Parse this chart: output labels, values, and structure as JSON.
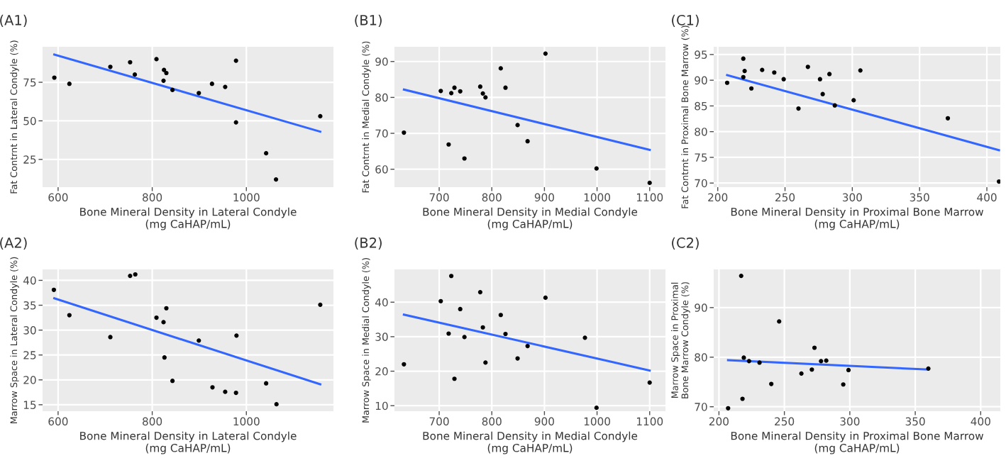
{
  "chart_data": [
    {
      "type": "scatter",
      "title": "(A1)",
      "xlabel": "Bone Mineral Density in Lateral Condyle\n(mg CaHAP/mL)",
      "ylabel": "Fat Contrnt in Lateral Condyle (%)",
      "xlim": [
        567,
        1185
      ],
      "ylim": [
        7,
        98
      ],
      "xticks": [
        600,
        800,
        1000
      ],
      "yticks": [
        25,
        50,
        75
      ],
      "grid": true,
      "series": [
        {
          "color": "#000000",
          "marker": "circle",
          "x": [
            592,
            624,
            711,
            753,
            763,
            809,
            825,
            830,
            824,
            843,
            899,
            927,
            955,
            978,
            978,
            1042,
            1063,
            1157
          ],
          "values": [
            78,
            74,
            85,
            88,
            80,
            90,
            83,
            81,
            76,
            70,
            68,
            74,
            72,
            89,
            49,
            29,
            12,
            53
          ]
        },
        {
          "type": "line",
          "color": "#3366ff",
          "x": [
            592,
            1157
          ],
          "values": [
            93,
            43
          ]
        }
      ]
    },
    {
      "type": "scatter",
      "title": "(B1)",
      "xlabel": "Bone Mineral Density in Medial Condyle\n(mg CaHAP/mL)",
      "ylabel": "Fat Contrnt in Medial Condyle (%)",
      "xlim": [
        615,
        1130
      ],
      "ylim": [
        55,
        94.1
      ],
      "xticks": [
        700,
        800,
        900,
        1000,
        1100
      ],
      "yticks": [
        60,
        70,
        80,
        90
      ],
      "grid": true,
      "series": [
        {
          "color": "#000000",
          "marker": "circle",
          "x": [
            633,
            703,
            718,
            723,
            729,
            740,
            748,
            778,
            783,
            788,
            817,
            826,
            849,
            868,
            902,
            999,
            1100
          ],
          "values": [
            70.2,
            81.8,
            66.9,
            81.2,
            82.7,
            81.7,
            63,
            83,
            81.1,
            80,
            88.1,
            82.7,
            72.3,
            67.8,
            92.2,
            60.2,
            56.2
          ]
        },
        {
          "type": "line",
          "color": "#3366ff",
          "x": [
            633,
            1100
          ],
          "values": [
            82.2,
            65.4
          ]
        }
      ]
    },
    {
      "type": "scatter",
      "title": "(C1)",
      "xlabel": "Bone Mineral Density in Proximal Bone Marrow\n(mg CaHAP/mL)",
      "ylabel": "Fat Contrnt in Proximal Bone Marrow (%)",
      "xlim": [
        197,
        410
      ],
      "ylim": [
        69.2,
        96.5
      ],
      "xticks": [
        200,
        250,
        300,
        350,
        400
      ],
      "yticks": [
        70,
        75,
        80,
        85,
        90,
        95
      ],
      "grid": true,
      "series": [
        {
          "color": "#000000",
          "marker": "circle",
          "x": [
            207,
            219,
            219,
            220,
            225,
            233,
            242,
            249,
            260,
            267,
            276,
            278,
            283,
            287,
            301,
            306,
            371,
            409
          ],
          "values": [
            89.5,
            94.2,
            90.6,
            91.8,
            88.4,
            92,
            91.5,
            90.2,
            84.5,
            92.6,
            90.2,
            87.3,
            91.2,
            85.1,
            86.1,
            91.9,
            82.6,
            70.3
          ]
        },
        {
          "type": "line",
          "color": "#3366ff",
          "x": [
            207,
            409
          ],
          "values": [
            91,
            76.4
          ]
        }
      ]
    },
    {
      "type": "scatter",
      "title": "(A2)",
      "xlabel": "Bone Mineral Density in Lateral Condyle\n(mg CaHAP/mL)",
      "ylabel": "Marrow Space in Lateral Condyle (%)",
      "xlim": [
        567,
        1185
      ],
      "ylim": [
        13.7,
        42.2
      ],
      "xticks": [
        600,
        800,
        1000
      ],
      "yticks": [
        15,
        20,
        25,
        30,
        35,
        40
      ],
      "grid": true,
      "series": [
        {
          "color": "#000000",
          "marker": "circle",
          "x": [
            591,
            624,
            711,
            753,
            764,
            809,
            824,
            830,
            826,
            843,
            899,
            928,
            955,
            978,
            979,
            1042,
            1064,
            1157
          ],
          "values": [
            38.1,
            33,
            28.6,
            40.9,
            41.2,
            32.5,
            31.6,
            34.4,
            24.5,
            19.8,
            27.9,
            18.5,
            17.6,
            17.4,
            28.9,
            19.3,
            15.1,
            35.1
          ]
        },
        {
          "type": "line",
          "color": "#3366ff",
          "x": [
            592,
            1157
          ],
          "values": [
            36.4,
            19.1
          ]
        }
      ]
    },
    {
      "type": "scatter",
      "title": "(B2)",
      "xlabel": "Bone Mineral Density in Medial Condyle\n(mg CaHAP/mL)",
      "ylabel": "Marrow Space in Medial Condyle (%)",
      "xlim": [
        615,
        1130
      ],
      "ylim": [
        8.4,
        49.5
      ],
      "xticks": [
        700,
        800,
        900,
        1000,
        1100
      ],
      "yticks": [
        10,
        20,
        30,
        40
      ],
      "grid": true,
      "series": [
        {
          "color": "#000000",
          "marker": "circle",
          "x": [
            633,
            703,
            718,
            723,
            729,
            740,
            748,
            778,
            783,
            788,
            817,
            826,
            849,
            868,
            902,
            977,
            999,
            1100
          ],
          "values": [
            22,
            40.3,
            30.9,
            47.6,
            17.8,
            38,
            29.9,
            42.9,
            32.7,
            22.5,
            36.3,
            30.8,
            23.7,
            27.3,
            41.3,
            29.7,
            9.4,
            16.7
          ]
        },
        {
          "type": "line",
          "color": "#3366ff",
          "x": [
            633,
            1100
          ],
          "values": [
            36.4,
            20.2
          ]
        }
      ]
    },
    {
      "type": "scatter",
      "title": "(C2)",
      "xlabel": "Bone Mineral Density in Proximal Bone Marrow\n(mg CaHAP/mL)",
      "ylabel": "Marrow Space in Proximal\nBone Marrow Condyle (%)",
      "xlim": [
        196,
        415
      ],
      "ylim": [
        69.1,
        97.7
      ],
      "xticks": [
        200,
        250,
        300,
        350,
        400
      ],
      "yticks": [
        70,
        80,
        90
      ],
      "grid": true,
      "series": [
        {
          "color": "#000000",
          "marker": "circle",
          "x": [
            207,
            218,
            217,
            219,
            223,
            231,
            240,
            246,
            263,
            271,
            273,
            278,
            282,
            295,
            299,
            360
          ],
          "values": [
            69.7,
            71.6,
            96.4,
            79.9,
            79.2,
            78.9,
            74.6,
            87.2,
            76.7,
            77.5,
            81.9,
            79.2,
            79.3,
            74.5,
            77.4,
            77.7
          ]
        },
        {
          "type": "line",
          "color": "#3366ff",
          "x": [
            207,
            360
          ],
          "values": [
            79.4,
            77.5
          ]
        }
      ]
    }
  ]
}
